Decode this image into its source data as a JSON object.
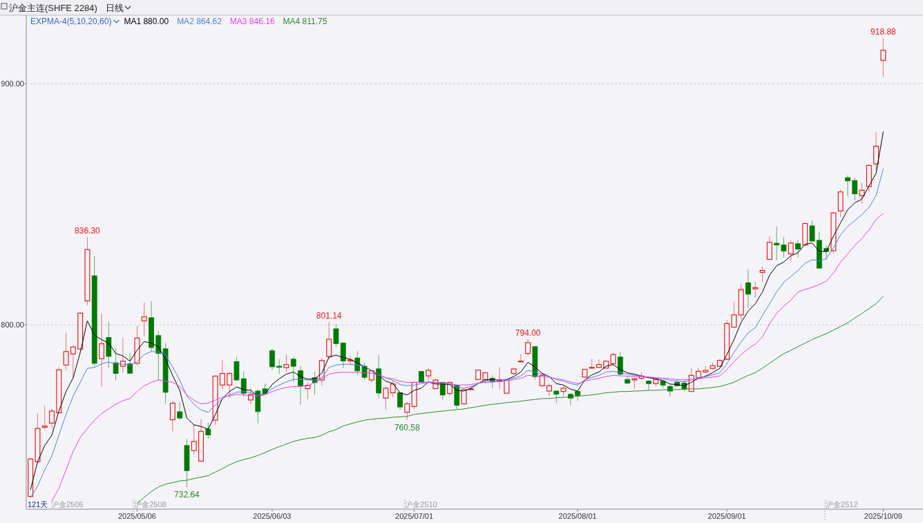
{
  "chart_data": {
    "type": "candlestick",
    "title": "沪金主连(SHFE 2284)",
    "subtitle": "日线",
    "legend_title": "EXPMA-4(5,10,20,60)",
    "legend": "top left",
    "grid": "y",
    "colors": [
      "#f01818",
      "#f01818",
      "#f01818",
      "#f01818",
      "#f01818",
      "#f01818",
      "#f01818",
      "#f01818",
      "#f01818",
      "#007a00",
      "#f01818",
      "#007a00",
      "#007a00",
      "#f01818",
      "#007a00",
      "#f01818",
      "#f01818",
      "#007a00",
      "#007a00",
      "#007a00",
      "#f01818",
      "#007a00",
      "#007a00",
      "#f01818",
      "#f01818",
      "#007a00",
      "#f01818",
      "#f01818",
      "#f01818",
      "#007a00",
      "#007a00",
      "#f01818",
      "#007a00",
      "#007a00",
      "#007a00",
      "#007a00",
      "#f01818",
      "#007a00",
      "#007a00",
      "#f01818",
      "#007a00",
      "#f01818",
      "#f01818",
      "#007a00",
      "#007a00",
      "#f01818",
      "#007a00",
      "#007a00",
      "#f01818",
      "#007a00",
      "#f01818",
      "#f01818",
      "#007a00",
      "#f01818",
      "#f01818",
      "#007a00",
      "#f01818",
      "#f01818",
      "#007a00",
      "#f01818",
      "#007a00",
      "#f01818",
      "#f01818",
      "#f01818",
      "#f01818",
      "#007a00",
      "#f01818",
      "#f01818",
      "#f01818",
      "#f01818",
      "#f01818",
      "#007a00",
      "#f01818",
      "#f01818",
      "#007a00",
      "#f01818",
      "#007a00",
      "#007a00",
      "#f01818",
      "#f01818",
      "#f01818",
      "#f01818",
      "#f01818",
      "#007a00",
      "#007a00",
      "#f01818",
      "#f01818",
      "#007a00",
      "#f01818",
      "#007a00",
      "#007a00",
      "#007a00",
      "#007a00",
      "#f01818",
      "#f01818",
      "#f01818",
      "#f01818",
      "#f01818",
      "#f01818",
      "#f01818",
      "#f01818",
      "#007a00",
      "#f01818",
      "#f01818",
      "#f01818",
      "#007a00",
      "#007a00",
      "#f01818",
      "#007a00",
      "#f01818",
      "#007a00",
      "#007a00",
      "#007a00",
      "#f01818",
      "#f01818",
      "#007a00",
      "#007a00",
      "#f01818",
      "#f01818",
      "#f01818",
      "#f01818"
    ],
    "ylim": [
      723.5,
      928.4
    ],
    "yticks": [
      {
        "value": 800,
        "label": "800.00"
      },
      {
        "value": 900,
        "label": "900.00"
      }
    ],
    "categories": [
      null,
      null,
      null,
      null,
      null,
      null,
      null,
      null,
      null,
      null,
      null,
      null,
      null,
      null,
      null,
      "2025/05/06",
      null,
      null,
      null,
      null,
      null,
      null,
      null,
      null,
      null,
      null,
      null,
      null,
      null,
      null,
      null,
      null,
      null,
      null,
      "2025/06/03",
      null,
      null,
      null,
      null,
      null,
      null,
      null,
      null,
      null,
      null,
      null,
      null,
      null,
      null,
      null,
      null,
      null,
      null,
      null,
      "2025/07/01",
      null,
      null,
      null,
      null,
      null,
      null,
      null,
      null,
      null,
      null,
      null,
      null,
      null,
      null,
      null,
      null,
      null,
      null,
      null,
      null,
      null,
      null,
      "2025/08/01",
      null,
      null,
      null,
      null,
      null,
      null,
      null,
      null,
      null,
      null,
      null,
      null,
      null,
      null,
      null,
      null,
      null,
      null,
      null,
      null,
      "2025/09/01",
      null,
      null,
      null,
      null,
      null,
      null,
      null,
      null,
      null,
      null,
      null,
      null,
      null,
      null,
      null,
      null,
      null,
      null,
      null,
      null,
      null,
      "2025/10/09"
    ],
    "ohlc": [
      [
        728.8,
        744.8,
        728.4,
        744.3
      ],
      [
        743.2,
        763.2,
        742.7,
        757.0
      ],
      [
        757.5,
        766.4,
        757.0,
        758.0
      ],
      [
        759.2,
        765.1,
        756.8,
        764.2
      ],
      [
        763.5,
        782.3,
        763.5,
        781.3
      ],
      [
        783.3,
        796.7,
        781.1,
        788.9
      ],
      [
        787.9,
        791.6,
        778.0,
        790.8
      ],
      [
        789.9,
        805.3,
        789.5,
        804.8
      ],
      [
        809.9,
        836.3,
        808.1,
        831.2
      ],
      [
        820.3,
        828.5,
        782.6,
        784.0
      ],
      [
        785.9,
        804.6,
        774.2,
        792.1
      ],
      [
        794.7,
        801.2,
        782.1,
        786.9
      ],
      [
        784.2,
        790.4,
        776.9,
        779.8
      ],
      [
        782.8,
        794.6,
        780.2,
        784.9
      ],
      [
        783.8,
        788.3,
        779.8,
        779.9
      ],
      [
        784.0,
        799.5,
        783.3,
        794.5
      ],
      [
        801.6,
        809.1,
        795.2,
        803.3
      ],
      [
        802.9,
        809.8,
        789.0,
        790.6
      ],
      [
        795.5,
        797.3,
        777.1,
        788.1
      ],
      [
        790.0,
        792.4,
        767.3,
        772.0
      ],
      [
        760.6,
        768.5,
        755.8,
        767.5
      ],
      [
        763.9,
        768.0,
        760.6,
        761.3
      ],
      [
        749.9,
        752.7,
        732.64,
        739.5
      ],
      [
        747.8,
        758.7,
        746.2,
        751.6
      ],
      [
        743.4,
        760.8,
        743.2,
        755.8
      ],
      [
        756.7,
        759.4,
        752.9,
        754.3
      ],
      [
        760.4,
        779.0,
        758.5,
        778.7
      ],
      [
        775.0,
        785.2,
        773.3,
        779.8
      ],
      [
        775.0,
        780.4,
        769.6,
        779.8
      ],
      [
        784.7,
        786.6,
        776.9,
        777.1
      ],
      [
        777.6,
        780.7,
        770.2,
        771.6
      ],
      [
        768.8,
        773.7,
        767.0,
        771.1
      ],
      [
        772.5,
        773.3,
        759.1,
        764.0
      ],
      [
        773.4,
        775.6,
        771.3,
        771.5
      ],
      [
        789.2,
        790.0,
        781.1,
        782.6
      ],
      [
        782.8,
        785.7,
        779.5,
        782.4
      ],
      [
        782.2,
        787.6,
        780.4,
        783.5
      ],
      [
        785.7,
        786.6,
        776.3,
        782.8
      ],
      [
        780.9,
        782.8,
        766.9,
        774.7
      ],
      [
        773.5,
        776.1,
        769.1,
        774.9
      ],
      [
        778.0,
        780.5,
        771.0,
        776.0
      ],
      [
        777.1,
        786.2,
        774.7,
        785.2
      ],
      [
        786.8,
        801.14,
        785.7,
        794.0
      ],
      [
        798.3,
        800.2,
        790.9,
        792.2
      ],
      [
        792.4,
        792.4,
        782.0,
        785.0
      ],
      [
        785.0,
        787.1,
        783.3,
        785.4
      ],
      [
        786.2,
        789.0,
        779.2,
        780.9
      ],
      [
        782.8,
        784.2,
        777.1,
        778.2
      ],
      [
        777.1,
        781.4,
        776.1,
        780.9
      ],
      [
        781.7,
        787.4,
        769.4,
        771.7
      ],
      [
        769.6,
        774.2,
        764.7,
        773.7
      ],
      [
        771.8,
        776.6,
        769.9,
        775.4
      ],
      [
        771.8,
        771.8,
        764.7,
        765.9
      ],
      [
        763.7,
        768.0,
        760.58,
        767.2
      ],
      [
        766.1,
        776.3,
        765.1,
        776.1
      ],
      [
        780.6,
        780.9,
        775.9,
        776.1
      ],
      [
        778.8,
        782.0,
        776.9,
        781.1
      ],
      [
        773.5,
        777.6,
        773.3,
        777.1
      ],
      [
        776.1,
        776.1,
        769.0,
        770.9
      ],
      [
        771.5,
        776.3,
        770.6,
        776.1
      ],
      [
        774.9,
        775.2,
        765.1,
        766.6
      ],
      [
        767.2,
        773.3,
        766.8,
        773.1
      ],
      [
        773.1,
        774.2,
        772.8,
        773.4
      ],
      [
        777.3,
        781.4,
        777.1,
        781.2
      ],
      [
        777.1,
        780.1,
        775.6,
        780.1
      ],
      [
        777.8,
        779.0,
        773.7,
        776.3
      ],
      [
        776.5,
        782.5,
        773.3,
        776.9
      ],
      [
        771.6,
        777.3,
        771.6,
        777.1
      ],
      [
        779.8,
        782.3,
        779.0,
        781.7
      ],
      [
        784.7,
        787.8,
        784.4,
        784.9
      ],
      [
        788.1,
        794.0,
        787.1,
        792.6
      ],
      [
        790.9,
        790.9,
        777.3,
        778.5
      ],
      [
        774.7,
        779.9,
        774.2,
        779.0
      ],
      [
        772.5,
        775.6,
        770.4,
        774.7
      ],
      [
        772.5,
        772.5,
        767.5,
        771.2
      ],
      [
        772.3,
        774.7,
        770.4,
        773.7
      ],
      [
        771.1,
        771.8,
        766.6,
        769.6
      ],
      [
        772.3,
        772.3,
        768.5,
        770.7
      ],
      [
        778.3,
        781.7,
        778.0,
        781.5
      ],
      [
        782.0,
        785.9,
        781.9,
        782.3
      ],
      [
        782.3,
        785.7,
        782.0,
        783.5
      ],
      [
        782.0,
        785.2,
        781.9,
        784.9
      ],
      [
        783.8,
        788.3,
        783.3,
        787.6
      ],
      [
        786.6,
        788.7,
        778.5,
        779.5
      ],
      [
        777.3,
        778.5,
        775.4,
        775.8
      ],
      [
        777.1,
        778.0,
        773.4,
        777.6
      ],
      [
        777.8,
        780.2,
        777.1,
        778.7
      ],
      [
        776.6,
        777.1,
        773.0,
        775.6
      ],
      [
        775.6,
        778.0,
        774.4,
        777.3
      ],
      [
        776.6,
        777.1,
        773.7,
        775.0
      ],
      [
        774.4,
        775.2,
        770.2,
        772.5
      ],
      [
        776.1,
        777.3,
        774.2,
        774.7
      ],
      [
        775.8,
        777.1,
        772.3,
        773.3
      ],
      [
        772.3,
        781.9,
        772.1,
        779.0
      ],
      [
        778.0,
        782.3,
        777.6,
        780.7
      ],
      [
        780.4,
        782.8,
        779.8,
        781.1
      ],
      [
        781.9,
        784.2,
        781.4,
        783.0
      ],
      [
        782.8,
        785.9,
        782.6,
        785.2
      ],
      [
        785.7,
        802.1,
        785.2,
        800.5
      ],
      [
        799.0,
        809.6,
        798.9,
        804.1
      ],
      [
        804.1,
        816.7,
        802.1,
        814.6
      ],
      [
        817.4,
        823.1,
        807.0,
        812.7
      ],
      [
        814.9,
        817.8,
        811.2,
        815.4
      ],
      [
        821.7,
        824.2,
        817.8,
        822.5
      ],
      [
        827.1,
        836.6,
        826.9,
        834.2
      ],
      [
        833.8,
        840.8,
        826.8,
        833.1
      ],
      [
        833.1,
        836.3,
        827.9,
        830.6
      ],
      [
        829.4,
        835.0,
        826.3,
        833.9
      ],
      [
        833.6,
        835.0,
        827.9,
        831.4
      ],
      [
        833.1,
        842.3,
        832.9,
        842.0
      ],
      [
        841.0,
        843.2,
        834.7,
        834.7
      ],
      [
        835.0,
        838.6,
        823.5,
        823.5
      ],
      [
        831.6,
        832.9,
        826.9,
        830.4
      ],
      [
        830.7,
        847.0,
        829.6,
        846.4
      ],
      [
        847.2,
        856.1,
        844.7,
        855.1
      ],
      [
        861.0,
        862.0,
        853.3,
        859.7
      ],
      [
        859.8,
        861.0,
        851.6,
        854.3
      ],
      [
        853.6,
        858.8,
        850.3,
        855.8
      ],
      [
        857.3,
        866.6,
        855.3,
        866.1
      ],
      [
        866.7,
        879.8,
        864.0,
        874.1
      ],
      [
        909.7,
        918.88,
        902.8,
        913.9
      ]
    ],
    "series": [
      {
        "name": "MA1 880.00",
        "type": "line",
        "color": "#000000",
        "values": [
          731.7,
          743.2,
          749.9,
          754.2,
          764.2,
          772.3,
          778.0,
          788.5,
          801.6,
          795.7,
          793.8,
          792.4,
          788.1,
          787.1,
          784.9,
          789.5,
          793.0,
          792.4,
          790.9,
          785.7,
          779.0,
          772.8,
          761.3,
          758.5,
          757.8,
          756.7,
          762.7,
          769.4,
          772.3,
          774.2,
          773.1,
          772.8,
          770.4,
          771.3,
          775.2,
          777.6,
          779.5,
          780.4,
          778.5,
          777.4,
          777.6,
          779.9,
          786.6,
          787.4,
          786.4,
          785.7,
          784.2,
          782.6,
          780.9,
          779.0,
          776.6,
          775.6,
          771.8,
          770.9,
          772.8,
          773.7,
          776.3,
          775.4,
          775.4,
          775.2,
          772.8,
          772.5,
          773.7,
          775.6,
          777.3,
          777.1,
          777.1,
          777.3,
          778.5,
          780.4,
          784.4,
          782.5,
          779.9,
          778.5,
          775.6,
          775.0,
          773.3,
          772.5,
          777.1,
          779.2,
          780.4,
          782.8,
          783.5,
          781.4,
          780.1,
          779.5,
          778.7,
          778.0,
          777.6,
          776.9,
          775.4,
          775.2,
          774.7,
          776.1,
          777.8,
          778.7,
          780.1,
          781.9,
          787.6,
          793.8,
          801.0,
          805.7,
          808.7,
          813.6,
          820.5,
          824.5,
          826.0,
          828.6,
          829.9,
          833.4,
          833.9,
          830.4,
          830.4,
          836.8,
          842.3,
          847.7,
          850.6,
          852.1,
          857.6,
          862.8,
          880.0
        ]
      },
      {
        "name": "MA2 864.62",
        "type": "line",
        "color": "#4f7fe8",
        "values": [
          728.4,
          733.1,
          739.8,
          745.6,
          754.2,
          762.8,
          770.4,
          776.1,
          781.9,
          782.3,
          783.8,
          784.5,
          783.8,
          783.6,
          783.3,
          784.7,
          787.6,
          788.9,
          788.7,
          787.6,
          782.4,
          777.1,
          770.4,
          767.0,
          764.7,
          763.7,
          766.6,
          769.4,
          770.9,
          772.0,
          772.3,
          771.8,
          770.7,
          771.3,
          773.4,
          775.0,
          776.3,
          777.3,
          777.3,
          777.1,
          777.1,
          778.0,
          782.3,
          783.3,
          783.6,
          783.6,
          783.3,
          782.8,
          780.9,
          779.5,
          778.0,
          776.9,
          775.2,
          774.7,
          775.0,
          775.6,
          776.1,
          775.9,
          775.6,
          775.4,
          774.2,
          773.7,
          774.4,
          775.6,
          776.6,
          776.8,
          777.1,
          777.3,
          777.8,
          778.8,
          781.1,
          780.4,
          779.5,
          778.5,
          777.3,
          776.6,
          775.6,
          775.0,
          777.1,
          778.2,
          779.0,
          780.4,
          780.7,
          780.1,
          779.5,
          779.0,
          778.7,
          778.3,
          778.0,
          777.7,
          776.9,
          776.6,
          776.3,
          777.1,
          778.0,
          778.5,
          779.2,
          780.1,
          783.8,
          788.5,
          792.8,
          796.7,
          798.8,
          803.8,
          808.7,
          813.6,
          817.6,
          820.0,
          822.5,
          825.5,
          827.0,
          826.5,
          827.4,
          831.9,
          837.3,
          840.8,
          843.2,
          845.7,
          848.7,
          853.6,
          864.62
        ]
      },
      {
        "name": "MA3 846.16",
        "type": "line",
        "color": "#f03cf0",
        "values": [
          null,
          null,
          null,
          726.9,
          732.2,
          739.8,
          747.5,
          753.2,
          757.0,
          760.4,
          763.2,
          765.1,
          767.0,
          768.5,
          769.4,
          772.3,
          774.7,
          776.1,
          777.1,
          776.6,
          776.1,
          774.4,
          770.9,
          768.7,
          767.2,
          767.5,
          768.7,
          769.9,
          770.6,
          771.1,
          770.9,
          770.6,
          770.4,
          770.9,
          772.3,
          773.3,
          774.0,
          774.4,
          774.4,
          774.7,
          776.0,
          777.6,
          779.5,
          780.1,
          780.3,
          780.3,
          780.3,
          780.1,
          779.9,
          779.0,
          778.0,
          777.6,
          776.6,
          776.1,
          776.1,
          776.1,
          776.3,
          776.1,
          775.9,
          775.6,
          775.0,
          775.0,
          775.2,
          775.8,
          776.1,
          776.3,
          776.4,
          776.8,
          777.3,
          777.8,
          779.0,
          778.8,
          778.5,
          778.2,
          777.6,
          777.1,
          776.3,
          775.6,
          776.6,
          777.3,
          777.8,
          778.5,
          779.0,
          778.8,
          778.7,
          778.5,
          778.5,
          778.3,
          778.0,
          777.8,
          777.6,
          777.3,
          777.1,
          777.3,
          777.6,
          778.0,
          778.3,
          778.8,
          781.4,
          784.7,
          787.6,
          790.0,
          792.0,
          794.9,
          800.3,
          804.7,
          807.7,
          810.2,
          813.6,
          814.6,
          815.6,
          816.6,
          818.1,
          821.5,
          826.0,
          829.4,
          832.9,
          835.8,
          839.3,
          843.7,
          846.16
        ]
      },
      {
        "name": "MA4 811.75",
        "type": "line",
        "color": "#2a8c2a",
        "values": [
          null,
          null,
          null,
          null,
          null,
          null,
          null,
          null,
          null,
          null,
          null,
          null,
          null,
          null,
          null,
          726.0,
          728.4,
          730.8,
          732.7,
          733.9,
          734.5,
          735.2,
          735.5,
          736.2,
          736.8,
          737.4,
          738.9,
          740.3,
          741.9,
          743.2,
          744.1,
          744.8,
          745.8,
          747.0,
          748.3,
          749.4,
          750.5,
          751.6,
          752.3,
          752.9,
          753.2,
          754.2,
          755.6,
          756.5,
          758.0,
          758.9,
          759.7,
          760.4,
          760.8,
          761.1,
          761.3,
          761.6,
          761.8,
          762.0,
          762.8,
          763.2,
          763.5,
          763.9,
          764.2,
          764.5,
          764.8,
          765.1,
          765.6,
          766.1,
          766.6,
          767.0,
          767.3,
          767.7,
          768.0,
          768.3,
          768.7,
          769.0,
          769.4,
          769.4,
          769.7,
          769.9,
          770.1,
          770.4,
          770.6,
          770.9,
          771.3,
          771.8,
          772.0,
          772.3,
          772.3,
          772.5,
          772.6,
          772.8,
          772.8,
          773.0,
          773.1,
          773.1,
          773.3,
          773.4,
          773.4,
          773.7,
          774.0,
          774.4,
          775.2,
          776.1,
          777.6,
          779.0,
          780.1,
          782.0,
          784.0,
          786.0,
          788.0,
          789.4,
          790.9,
          792.4,
          793.9,
          795.1,
          796.3,
          797.8,
          799.3,
          800.8,
          802.8,
          804.7,
          806.7,
          808.7,
          811.75
        ]
      }
    ],
    "annotations": [
      {
        "text": "836.30",
        "y": 836.3
      },
      {
        "text": "732.64",
        "y": 732.64
      },
      {
        "text": "801.14",
        "y": 801.14
      },
      {
        "text": "760.58",
        "y": 760.58
      },
      {
        "text": "794.00",
        "y": 794.0
      },
      {
        "text": "918.88",
        "y": 918.88
      },
      "121天",
      "沪金2506",
      "沪金2508",
      "沪金2510",
      "沪金2512"
    ]
  }
}
